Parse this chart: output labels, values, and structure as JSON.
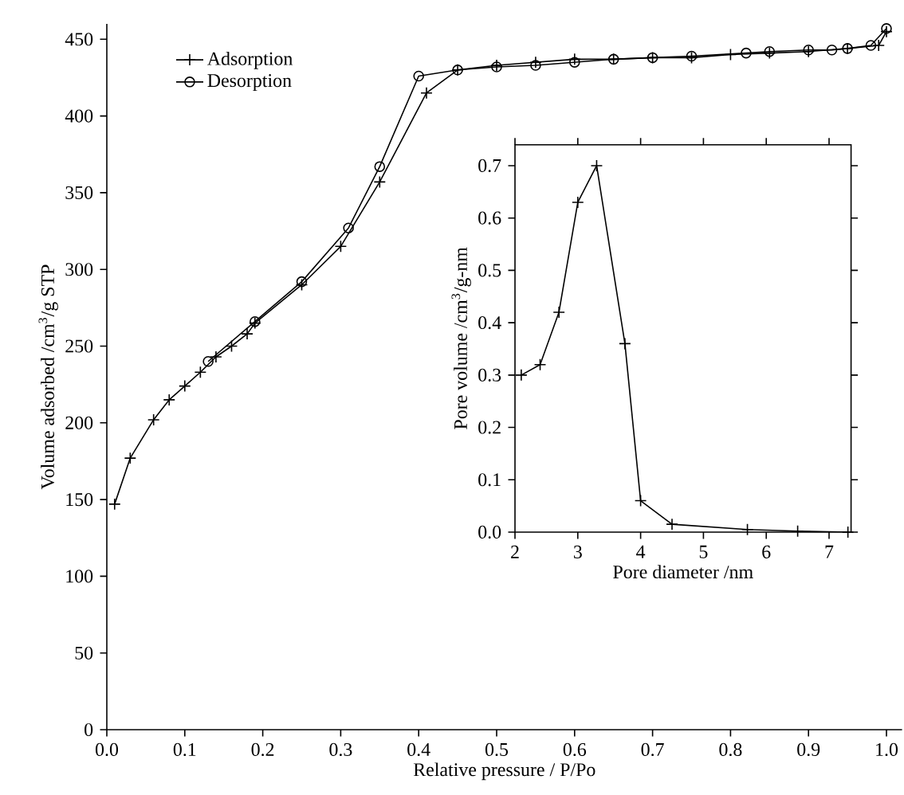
{
  "chart_data": [
    {
      "type": "line",
      "xlabel": "Relative pressure / P/Po",
      "ylabel": "Volume adsorbed /cm$^{3}$/g STP",
      "xlim": [
        0,
        1.02
      ],
      "ylim": [
        0,
        460
      ],
      "xticks": [
        {
          "value": 0,
          "label": "0.0"
        },
        0.1,
        0.2,
        0.3,
        0.4,
        0.5,
        0.6,
        0.7,
        0.8,
        0.9,
        {
          "value": 1,
          "label": "1.0"
        }
      ],
      "yticks": [
        0,
        50,
        100,
        150,
        200,
        250,
        300,
        350,
        400,
        450
      ],
      "legend": "top left",
      "grid": false,
      "series": [
        {
          "name": "Adsorption",
          "color": "#000000",
          "marker": "cross",
          "x": [
            0.01,
            0.03,
            0.06,
            0.08,
            0.1,
            0.12,
            0.14,
            0.16,
            0.18,
            0.19,
            0.25,
            0.3,
            0.35,
            0.41,
            0.45,
            0.5,
            0.55,
            0.6,
            0.65,
            0.7,
            0.75,
            0.8,
            0.85,
            0.9,
            0.95,
            0.99,
            1.0
          ],
          "values": [
            147,
            177,
            202,
            215,
            224,
            233,
            243,
            250,
            258,
            265,
            290,
            315,
            357,
            415,
            430,
            433,
            435,
            437,
            437,
            438,
            438,
            440,
            441,
            442,
            444,
            446,
            455
          ]
        },
        {
          "name": "Desorption",
          "color": "#000000",
          "marker": "circle",
          "x": [
            1.0,
            0.98,
            0.95,
            0.93,
            0.9,
            0.85,
            0.82,
            0.75,
            0.7,
            0.65,
            0.6,
            0.55,
            0.5,
            0.45,
            0.4,
            0.35,
            0.31,
            0.25,
            0.19,
            0.13
          ],
          "values": [
            457,
            446,
            444,
            443,
            443,
            442,
            441,
            439,
            438,
            437,
            435,
            433,
            432,
            430,
            426,
            367,
            327,
            292,
            266,
            240
          ]
        }
      ]
    },
    {
      "type": "line",
      "xlabel": "Pore diameter /nm",
      "ylabel": "Pore volume /cm$^{3}$/g-nm",
      "xlim": [
        2,
        7.35
      ],
      "ylim": [
        0,
        0.74
      ],
      "xticks": [
        2,
        3,
        4,
        5,
        6,
        7
      ],
      "yticks": [
        {
          "value": 0,
          "label": "0.0"
        },
        0.1,
        0.2,
        0.3,
        0.4,
        0.5,
        0.6,
        0.7
      ],
      "grid": false,
      "series": [
        {
          "color": "#000000",
          "marker": "cross",
          "x": [
            2.1,
            2.4,
            2.7,
            3.0,
            3.3,
            3.75,
            4.0,
            4.5,
            5.7,
            6.5,
            7.3
          ],
          "values": [
            0.3,
            0.32,
            0.42,
            0.63,
            0.7,
            0.36,
            0.06,
            0.015,
            0.005,
            0.002,
            0.0
          ]
        }
      ]
    }
  ]
}
